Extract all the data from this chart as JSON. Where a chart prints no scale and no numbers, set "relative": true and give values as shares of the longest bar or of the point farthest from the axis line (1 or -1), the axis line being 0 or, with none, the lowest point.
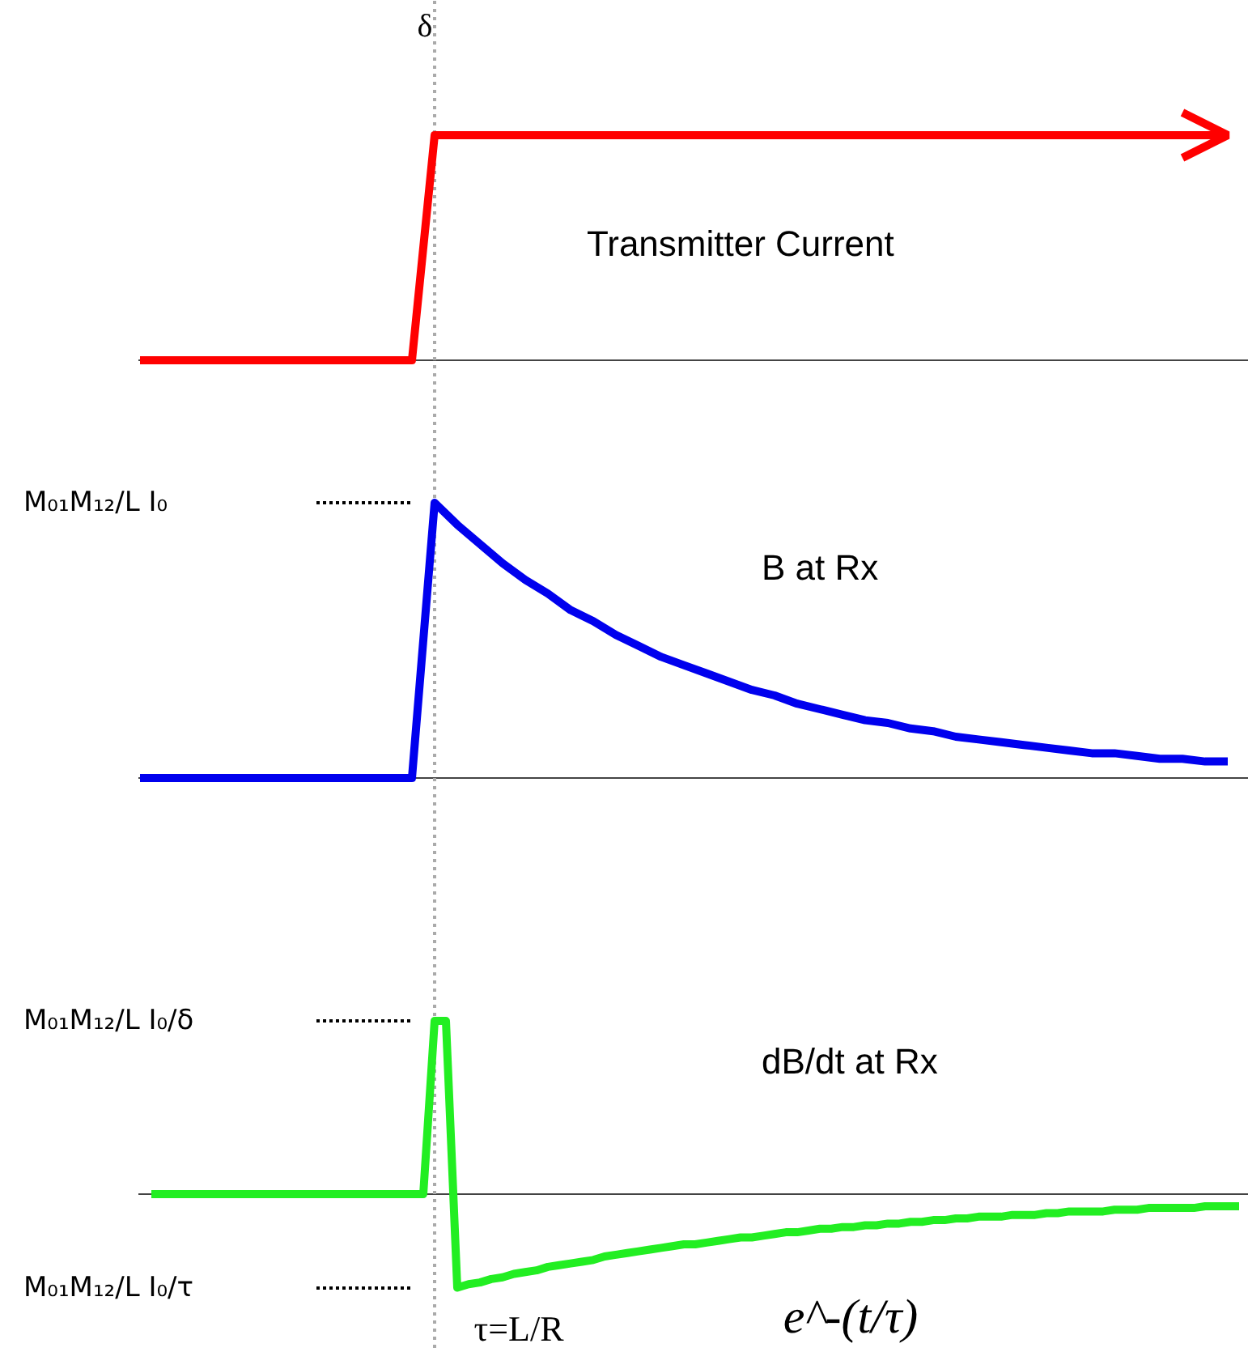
{
  "chart_data": [
    {
      "type": "line",
      "title": "Transmitter Current",
      "relative": true,
      "categories": [
        null,
        null,
        null,
        null,
        null,
        null,
        null,
        null,
        null,
        null,
        null,
        null,
        null,
        null,
        null,
        null,
        null,
        null,
        null,
        null,
        null,
        null,
        null,
        null,
        null,
        null,
        null,
        null,
        null,
        null,
        null,
        null,
        null,
        null,
        null,
        null,
        null,
        null,
        null,
        null,
        null,
        null,
        null,
        null,
        null,
        null,
        null,
        null,
        null
      ],
      "series": [
        {
          "color": "#ff0000",
          "values": [
            0,
            0,
            0,
            0,
            0,
            0,
            0,
            0,
            0,
            0,
            0,
            0,
            0,
            1,
            1,
            1,
            1,
            1,
            1,
            1,
            1,
            1,
            1,
            1,
            1,
            1,
            1,
            1,
            1,
            1,
            1,
            1,
            1,
            1,
            1,
            1,
            1,
            1,
            1,
            1,
            1,
            1,
            1,
            1,
            1,
            1,
            1,
            1,
            1
          ]
        }
      ],
      "annotations": [
        "δ"
      ],
      "ref_lines": [
        {
          "axis": "x",
          "color": "#aaaaaa",
          "line_style": "dotted"
        }
      ]
    },
    {
      "type": "line",
      "title": "B at Rx",
      "relative": true,
      "categories": [
        null,
        null,
        null,
        null,
        null,
        null,
        null,
        null,
        null,
        null,
        null,
        null,
        null,
        null,
        null,
        null,
        null,
        null,
        null,
        null,
        null,
        null,
        null,
        null,
        null,
        null,
        null,
        null,
        null,
        null,
        null,
        null,
        null,
        null,
        null,
        null,
        null,
        null,
        null,
        null,
        null,
        null,
        null,
        null,
        null,
        null,
        null,
        null,
        null
      ],
      "series": [
        {
          "color": "#0000ee",
          "values": [
            0,
            0,
            0,
            0,
            0,
            0,
            0,
            0,
            0,
            0,
            0,
            0,
            0,
            1,
            0.92,
            0.85,
            0.78,
            0.72,
            0.67,
            0.61,
            0.57,
            0.52,
            0.48,
            0.44,
            0.41,
            0.38,
            0.35,
            0.32,
            0.3,
            0.27,
            0.25,
            0.23,
            0.21,
            0.2,
            0.18,
            0.17,
            0.15,
            0.14,
            0.13,
            0.12,
            0.11,
            0.1,
            0.09,
            0.09,
            0.08,
            0.07,
            0.07,
            0.06,
            0.06
          ]
        }
      ],
      "annotations": [
        "M₀₁M₁₂/L I₀"
      ],
      "ref_lines": [
        {
          "axis": "x",
          "color": "#aaaaaa",
          "line_style": "dotted"
        }
      ]
    },
    {
      "type": "line",
      "title": "dB/dt at Rx",
      "relative": true,
      "categories": [
        null,
        null,
        null,
        null,
        null,
        null,
        null,
        null,
        null,
        null,
        null,
        null,
        null,
        null,
        null,
        null,
        null,
        null,
        null,
        null,
        null,
        null,
        null,
        null,
        null,
        null,
        null,
        null,
        null,
        null,
        null,
        null,
        null,
        null,
        null,
        null,
        null,
        null,
        null,
        null,
        null,
        null,
        null,
        null,
        null,
        null,
        null,
        null,
        null,
        null,
        null,
        null,
        null,
        null,
        null,
        null,
        null,
        null,
        null,
        null,
        null,
        null,
        null,
        null,
        null,
        null,
        null,
        null,
        null,
        null,
        null,
        null,
        null,
        null,
        null,
        null,
        null,
        null,
        null,
        null,
        null,
        null,
        null,
        null,
        null,
        null,
        null,
        null,
        null,
        null,
        null,
        null,
        null,
        null,
        null,
        null,
        null
      ],
      "series": [
        {
          "color": "#22ee22",
          "values": [
            0,
            0,
            0,
            0,
            0,
            0,
            0,
            0,
            0,
            0,
            0,
            0,
            0,
            0,
            0,
            0,
            0,
            0,
            0,
            0,
            0,
            0,
            0,
            0,
            0,
            1,
            1,
            -0.54,
            -0.52,
            -0.51,
            -0.49,
            -0.48,
            -0.46,
            -0.45,
            -0.44,
            -0.42,
            -0.41,
            -0.4,
            -0.39,
            -0.38,
            -0.36,
            -0.35,
            -0.34,
            -0.33,
            -0.32,
            -0.31,
            -0.3,
            -0.29,
            -0.29,
            -0.28,
            -0.27,
            -0.26,
            -0.25,
            -0.25,
            -0.24,
            -0.23,
            -0.22,
            -0.22,
            -0.21,
            -0.2,
            -0.2,
            -0.19,
            -0.19,
            -0.18,
            -0.18,
            -0.17,
            -0.17,
            -0.16,
            -0.16,
            -0.15,
            -0.15,
            -0.14,
            -0.14,
            -0.13,
            -0.13,
            -0.13,
            -0.12,
            -0.12,
            -0.12,
            -0.11,
            -0.11,
            -0.1,
            -0.1,
            -0.1,
            -0.1,
            -0.09,
            -0.09,
            -0.09,
            -0.08,
            -0.08,
            -0.08,
            -0.08,
            -0.08,
            -0.07,
            -0.07,
            -0.07,
            -0.07
          ]
        }
      ],
      "annotations": [
        "M₀₁M₁₂/L I₀/δ",
        "M₀₁M₁₂/L I₀/τ",
        "τ=L/R",
        "e^-(t/τ)"
      ],
      "ref_lines": [
        {
          "axis": "x",
          "color": "#aaaaaa",
          "line_style": "dotted"
        }
      ]
    }
  ]
}
